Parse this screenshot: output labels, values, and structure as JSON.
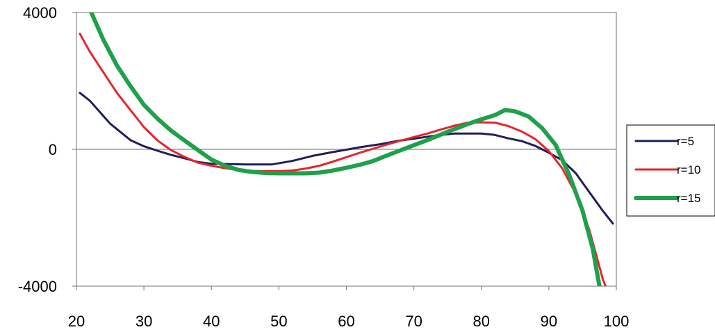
{
  "chart_data": {
    "type": "line",
    "title": "",
    "xlabel": "",
    "ylabel": "",
    "xlim": [
      20,
      100
    ],
    "ylim": [
      -4000,
      4000
    ],
    "x_ticks": [
      "20",
      "30",
      "40",
      "50",
      "60",
      "70",
      "80",
      "90",
      "100"
    ],
    "y_ticks": [
      "4000",
      "0",
      "-4000"
    ],
    "grid": false,
    "zero_line": true,
    "legend_position": "right",
    "series": [
      {
        "name": "r=5",
        "color": "#1f1f5c",
        "width": 3,
        "points": [
          [
            20.5,
            1650
          ],
          [
            22,
            1420
          ],
          [
            25,
            750
          ],
          [
            28,
            270
          ],
          [
            30,
            90
          ],
          [
            32,
            -40
          ],
          [
            34,
            -160
          ],
          [
            36,
            -260
          ],
          [
            38,
            -370
          ],
          [
            40,
            -420
          ],
          [
            45,
            -440
          ],
          [
            49,
            -440
          ],
          [
            52,
            -340
          ],
          [
            55,
            -190
          ],
          [
            58,
            -80
          ],
          [
            60,
            -10
          ],
          [
            62,
            60
          ],
          [
            65,
            150
          ],
          [
            68,
            260
          ],
          [
            70,
            310
          ],
          [
            72,
            370
          ],
          [
            74,
            420
          ],
          [
            76,
            460
          ],
          [
            78,
            460
          ],
          [
            80,
            460
          ],
          [
            82,
            420
          ],
          [
            84,
            320
          ],
          [
            86,
            240
          ],
          [
            88,
            100
          ],
          [
            90,
            -100
          ],
          [
            92,
            -320
          ],
          [
            94,
            -700
          ],
          [
            96,
            -1250
          ],
          [
            98,
            -1800
          ],
          [
            99.5,
            -2170
          ]
        ]
      },
      {
        "name": "r=10",
        "color": "#e8242b",
        "width": 3,
        "points": [
          [
            20.5,
            3380
          ],
          [
            22,
            2850
          ],
          [
            24,
            2250
          ],
          [
            26,
            1650
          ],
          [
            28,
            1150
          ],
          [
            30,
            650
          ],
          [
            32,
            260
          ],
          [
            34,
            -20
          ],
          [
            36,
            -220
          ],
          [
            38,
            -390
          ],
          [
            40,
            -480
          ],
          [
            42,
            -550
          ],
          [
            44,
            -600
          ],
          [
            46,
            -630
          ],
          [
            48,
            -640
          ],
          [
            50,
            -640
          ],
          [
            52,
            -620
          ],
          [
            54,
            -560
          ],
          [
            56,
            -480
          ],
          [
            58,
            -360
          ],
          [
            60,
            -230
          ],
          [
            62,
            -100
          ],
          [
            64,
            20
          ],
          [
            66,
            140
          ],
          [
            68,
            250
          ],
          [
            70,
            360
          ],
          [
            72,
            460
          ],
          [
            74,
            580
          ],
          [
            76,
            690
          ],
          [
            78,
            780
          ],
          [
            80,
            790
          ],
          [
            82,
            780
          ],
          [
            84,
            680
          ],
          [
            86,
            520
          ],
          [
            88,
            300
          ],
          [
            90,
            -50
          ],
          [
            92,
            -560
          ],
          [
            94,
            -1300
          ],
          [
            96,
            -2350
          ],
          [
            98,
            -3800
          ],
          [
            98.4,
            -4000
          ]
        ]
      },
      {
        "name": "r=15",
        "color": "#1fa04a",
        "width": 6,
        "points": [
          [
            22.2,
            4000
          ],
          [
            24,
            3200
          ],
          [
            26,
            2450
          ],
          [
            28,
            1850
          ],
          [
            30,
            1300
          ],
          [
            32,
            900
          ],
          [
            34,
            550
          ],
          [
            36,
            260
          ],
          [
            38,
            -20
          ],
          [
            40,
            -300
          ],
          [
            42,
            -480
          ],
          [
            44,
            -600
          ],
          [
            46,
            -660
          ],
          [
            48,
            -690
          ],
          [
            50,
            -700
          ],
          [
            52,
            -700
          ],
          [
            54,
            -700
          ],
          [
            56,
            -680
          ],
          [
            58,
            -620
          ],
          [
            60,
            -540
          ],
          [
            62,
            -450
          ],
          [
            64,
            -340
          ],
          [
            66,
            -180
          ],
          [
            68,
            -30
          ],
          [
            70,
            120
          ],
          [
            72,
            270
          ],
          [
            74,
            430
          ],
          [
            76,
            590
          ],
          [
            78,
            740
          ],
          [
            80,
            880
          ],
          [
            82,
            1000
          ],
          [
            83.5,
            1150
          ],
          [
            85,
            1110
          ],
          [
            87,
            960
          ],
          [
            89,
            620
          ],
          [
            91,
            130
          ],
          [
            93,
            -740
          ],
          [
            95,
            -1800
          ],
          [
            96.5,
            -2900
          ],
          [
            97.5,
            -4000
          ]
        ]
      }
    ]
  }
}
